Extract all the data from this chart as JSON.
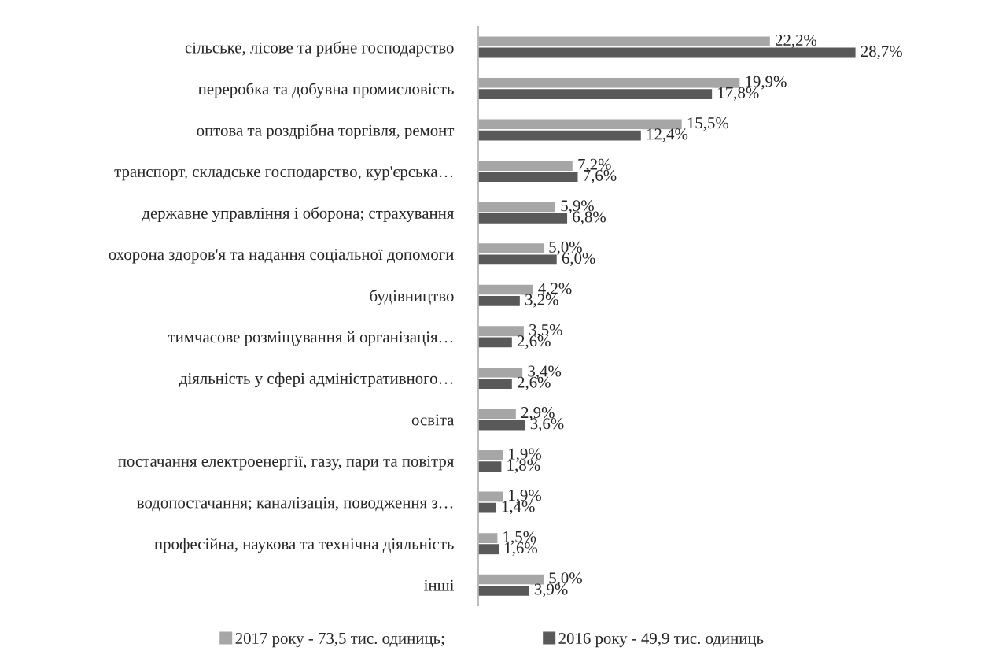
{
  "chart_data": {
    "type": "bar",
    "orientation": "horizontal",
    "categories": [
      "сільське, лісове та рибне господарство",
      "переробка та добувна промисловість",
      "оптова та роздрібна торгівля, ремонт",
      "транспорт, складське господарство, кур'єрська…",
      "державне управління і оборона; страхування",
      "охорона здоров'я та надання соціальної допомоги",
      "будівництво",
      "тимчасове розміщування й організація…",
      "діяльність у сфері адміністративного…",
      "освіта",
      "постачання електроенергії, газу, пари та повітря",
      "водопостачання; каналізація, поводження з…",
      "професійна, наукова та технічна діяльність",
      "інші"
    ],
    "series": [
      {
        "name": "2017 року - 73,5 тис. одиниць;",
        "color": "#a6a6a6",
        "values": [
          22.2,
          19.9,
          15.5,
          7.2,
          5.9,
          5.0,
          4.2,
          3.5,
          3.4,
          2.9,
          1.9,
          1.9,
          1.5,
          5.0
        ],
        "value_labels": [
          "22,2%",
          "19,9%",
          "15,5%",
          "7,2%",
          "5,9%",
          "5,0%",
          "4,2%",
          "3,5%",
          "3,4%",
          "2,9%",
          "1,9%",
          "1,9%",
          "1,5%",
          "5,0%"
        ]
      },
      {
        "name": "2016 року - 49,9 тис. одиниць",
        "color": "#595959",
        "values": [
          28.7,
          17.8,
          12.4,
          7.6,
          6.8,
          6.0,
          3.2,
          2.6,
          2.6,
          3.6,
          1.8,
          1.4,
          1.6,
          3.9
        ],
        "value_labels": [
          "28,7%",
          "17,8%",
          "12,4%",
          "7,6%",
          "6,8%",
          "6,0%",
          "3,2%",
          "2,6%",
          "2,6%",
          "3,6%",
          "1,8%",
          "1,4%",
          "1,6%",
          "3,9%"
        ]
      }
    ],
    "grid": false,
    "legend": "bottom"
  }
}
